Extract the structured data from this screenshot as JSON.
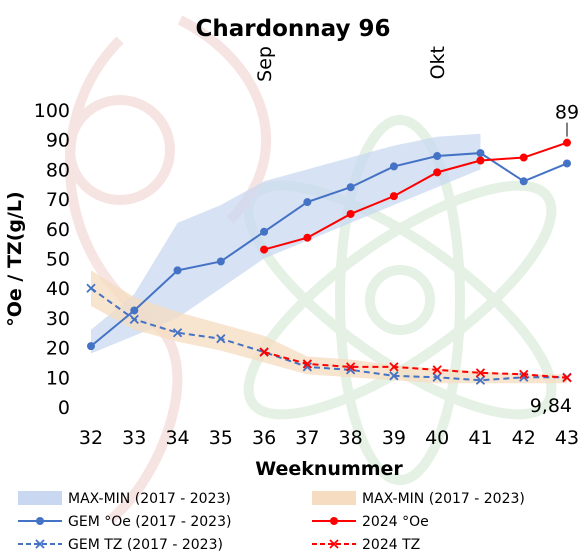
{
  "chart_data": {
    "type": "line",
    "title": "Chardonnay 96",
    "xlabel": "Weeknummer",
    "ylabel": "°Oe / TZ(g/L)",
    "x": [
      32,
      33,
      34,
      35,
      36,
      37,
      38,
      39,
      40,
      41,
      42,
      43
    ],
    "xlim": [
      32,
      43
    ],
    "ylim": [
      0,
      100
    ],
    "yticks": [
      0,
      10,
      20,
      30,
      40,
      50,
      60,
      70,
      80,
      90,
      100
    ],
    "grid": false,
    "legend_position": "bottom",
    "month_labels": [
      {
        "text": "Sep",
        "x": 36
      },
      {
        "text": "Okt",
        "x": 40
      }
    ],
    "bands": [
      {
        "name": "MAX-MIN (2017 - 2023)",
        "color": "#c9d8f0",
        "x": [
          32,
          33,
          34,
          35,
          36,
          37,
          38,
          39,
          40,
          41
        ],
        "upper": [
          26,
          38,
          62,
          68,
          76,
          80,
          84,
          88,
          91,
          92
        ],
        "lower": [
          18,
          24,
          30,
          40,
          50,
          56,
          62,
          68,
          74,
          80
        ]
      },
      {
        "name": "MAX-MIN (2017 - 2023)",
        "color": "#f6dcc0",
        "x": [
          32,
          33,
          34,
          35,
          36,
          37,
          38,
          39,
          40,
          41,
          42,
          43
        ],
        "upper": [
          46,
          37,
          32,
          28,
          24,
          17,
          16,
          14,
          13,
          12,
          11,
          11
        ],
        "lower": [
          34,
          26,
          22,
          19,
          15,
          11,
          10,
          9,
          8,
          8,
          8,
          8
        ]
      }
    ],
    "series": [
      {
        "name": "GEM °Oe (2017 - 2023)",
        "color": "#4472c4",
        "style": "solid",
        "marker": "circle",
        "x": [
          32,
          33,
          34,
          35,
          36,
          37,
          38,
          39,
          40,
          41,
          42,
          43
        ],
        "values": [
          20.5,
          32.5,
          46,
          49,
          59,
          69,
          74,
          81,
          84.5,
          85.5,
          76,
          82
        ]
      },
      {
        "name": "2024 °Oe",
        "color": "#ff0000",
        "style": "solid",
        "marker": "circle",
        "x": [
          36,
          37,
          38,
          39,
          40,
          41,
          42,
          43
        ],
        "values": [
          53,
          57,
          65,
          71,
          79,
          83,
          84,
          89
        ]
      },
      {
        "name": "GEM TZ (2017 - 2023)",
        "color": "#4472c4",
        "style": "dashed",
        "marker": "x",
        "x": [
          32,
          33,
          34,
          35,
          36,
          37,
          38,
          39,
          40,
          41,
          42,
          43
        ],
        "values": [
          40,
          29.5,
          25,
          23,
          18.5,
          13.5,
          12.5,
          10.5,
          10,
          9,
          10,
          10
        ]
      },
      {
        "name": "2024 TZ",
        "color": "#ff0000",
        "style": "dashed",
        "marker": "x",
        "x": [
          36,
          37,
          38,
          39,
          40,
          41,
          42,
          43
        ],
        "values": [
          18.5,
          14.5,
          13.5,
          13.5,
          12.5,
          11.5,
          11,
          9.84
        ]
      }
    ],
    "data_labels": [
      {
        "text": "89",
        "x": 43,
        "y": 89,
        "position": "above"
      },
      {
        "text": "9,84",
        "x": 43,
        "y": 9.84,
        "position": "below-left"
      }
    ]
  }
}
